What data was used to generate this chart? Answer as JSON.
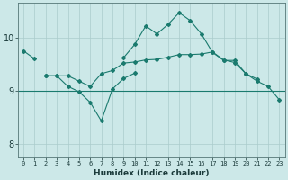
{
  "x": [
    0,
    1,
    2,
    3,
    4,
    5,
    6,
    7,
    8,
    9,
    10,
    11,
    12,
    13,
    14,
    15,
    16,
    17,
    18,
    19,
    20,
    21,
    22,
    23
  ],
  "line_top": [
    9.75,
    9.6,
    null,
    null,
    null,
    null,
    null,
    null,
    null,
    9.62,
    9.87,
    10.22,
    10.07,
    10.25,
    10.47,
    10.32,
    10.07,
    9.72,
    9.57,
    9.57,
    9.32,
    9.22,
    null,
    null
  ],
  "line_mid": [
    null,
    null,
    9.28,
    9.28,
    9.28,
    9.18,
    9.08,
    9.32,
    9.38,
    9.52,
    9.54,
    9.58,
    9.59,
    9.63,
    9.68,
    9.68,
    9.69,
    9.73,
    9.58,
    9.53,
    9.32,
    9.18,
    9.08,
    8.83
  ],
  "line_bot": [
    null,
    null,
    9.28,
    9.28,
    9.08,
    8.98,
    8.78,
    8.43,
    9.03,
    9.23,
    9.33,
    null,
    null,
    null,
    null,
    null,
    null,
    null,
    null,
    null,
    null,
    null,
    null,
    null
  ],
  "line_flat_y": 9.0,
  "line_flat_x_start": 0,
  "line_flat_x_end": 23,
  "background_color": "#cce8e8",
  "grid_color": "#aacccc",
  "line_color": "#1a7a6e",
  "xlabel": "Humidex (Indice chaleur)",
  "yticks": [
    8,
    9,
    10
  ],
  "xticks": [
    0,
    1,
    2,
    3,
    4,
    5,
    6,
    7,
    8,
    9,
    10,
    11,
    12,
    13,
    14,
    15,
    16,
    17,
    18,
    19,
    20,
    21,
    22,
    23
  ],
  "xlim": [
    -0.5,
    23.5
  ],
  "ylim": [
    7.75,
    10.65
  ]
}
